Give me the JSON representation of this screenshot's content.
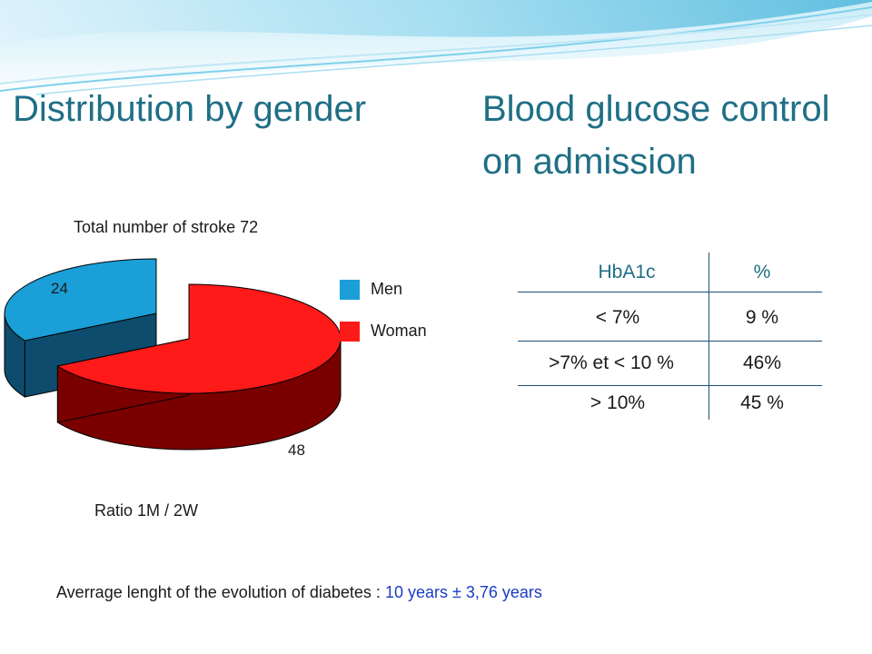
{
  "titles": {
    "left": "Distribution by gender",
    "right_line1": "Blood glucose control",
    "right_line2": "on admission"
  },
  "colors": {
    "title": "#1f6f86",
    "men": "#1a9fd8",
    "woman": "#ff1a1a",
    "note_value": "#1a3cc8"
  },
  "chart_data": {
    "type": "pie",
    "title": "Total number of stroke 72",
    "slices": [
      {
        "name": "Men",
        "value": 24
      },
      {
        "name": "Woman",
        "value": 48
      }
    ],
    "legend_position": "right",
    "caption": "Ratio 1M / 2W"
  },
  "legend": {
    "men": "Men",
    "woman": "Woman"
  },
  "table": {
    "headers": [
      "HbA1c",
      "%"
    ],
    "rows": [
      [
        "< 7%",
        "9 %"
      ],
      [
        ">7% et < 10 %",
        "46%"
      ],
      [
        "> 10%",
        "45 %"
      ]
    ]
  },
  "note": {
    "label": "Averrage lenght  of the evolution of diabetes :",
    "value": "10 years ± 3,76 years"
  }
}
